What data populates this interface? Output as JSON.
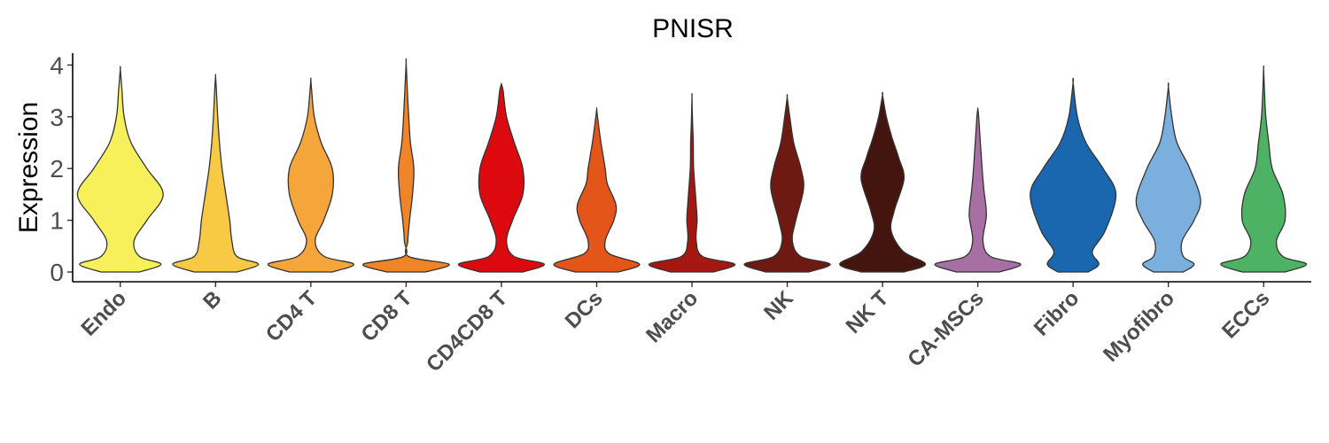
{
  "chart_data": {
    "type": "violin",
    "title": "PNISR",
    "xlabel": "",
    "ylabel": "Expression",
    "ylim": [
      -0.2,
      4.25
    ],
    "yticks": [
      "0",
      "1",
      "2",
      "3",
      "4"
    ],
    "grid": false,
    "legend": "none",
    "categories": [
      "Endo",
      "B",
      "CD4 T",
      "CD8 T",
      "CD4CD8 T",
      "DCs",
      "Macro",
      "NK",
      "NK T",
      "CA-MSCs",
      "Fibro",
      "Myofibro",
      "ECCs"
    ],
    "colors": [
      "#F7F05A",
      "#F7C945",
      "#F5A63A",
      "#F08428",
      "#DC0A0F",
      "#E45519",
      "#A51812",
      "#6E1912",
      "#44150E",
      "#A76FA3",
      "#1A67B0",
      "#7BAFDE",
      "#4DB264"
    ],
    "series": [
      {
        "category": "Endo",
        "max": 3.92,
        "density": [
          [
            0,
            0.45
          ],
          [
            0.15,
            0.95
          ],
          [
            0.3,
            0.45
          ],
          [
            0.6,
            0.32
          ],
          [
            1.0,
            0.62
          ],
          [
            1.5,
            1.0
          ],
          [
            2.0,
            0.62
          ],
          [
            2.5,
            0.25
          ],
          [
            3.0,
            0.09
          ],
          [
            3.5,
            0.04
          ],
          [
            3.92,
            0
          ]
        ]
      },
      {
        "category": "B",
        "max": 3.78,
        "density": [
          [
            0,
            0.5
          ],
          [
            0.15,
            1.0
          ],
          [
            0.3,
            0.5
          ],
          [
            0.6,
            0.38
          ],
          [
            1.0,
            0.33
          ],
          [
            1.5,
            0.24
          ],
          [
            2.0,
            0.15
          ],
          [
            2.5,
            0.09
          ],
          [
            3.0,
            0.05
          ],
          [
            3.5,
            0.02
          ],
          [
            3.78,
            0
          ]
        ]
      },
      {
        "category": "CD4 T",
        "max": 3.72,
        "density": [
          [
            0,
            0.5
          ],
          [
            0.15,
            1.0
          ],
          [
            0.3,
            0.32
          ],
          [
            0.6,
            0.1
          ],
          [
            1.0,
            0.3
          ],
          [
            1.5,
            0.5
          ],
          [
            2.0,
            0.5
          ],
          [
            2.5,
            0.24
          ],
          [
            3.0,
            0.08
          ],
          [
            3.5,
            0.02
          ],
          [
            3.72,
            0
          ]
        ]
      },
      {
        "category": "CD8 T",
        "max": 4.05,
        "density": [
          [
            0,
            0.45
          ],
          [
            0.15,
            1.0
          ],
          [
            0.3,
            0.06
          ],
          [
            0.6,
            0.04
          ],
          [
            1.0,
            0.08
          ],
          [
            1.5,
            0.15
          ],
          [
            2.0,
            0.18
          ],
          [
            2.5,
            0.1
          ],
          [
            3.0,
            0.06
          ],
          [
            3.5,
            0.03
          ],
          [
            4.05,
            0
          ]
        ]
      },
      {
        "category": "CD4CD8 T",
        "max": 3.63,
        "density": [
          [
            0,
            0.5
          ],
          [
            0.15,
            1.0
          ],
          [
            0.3,
            0.3
          ],
          [
            0.6,
            0.12
          ],
          [
            1.0,
            0.26
          ],
          [
            1.5,
            0.5
          ],
          [
            2.0,
            0.5
          ],
          [
            2.5,
            0.3
          ],
          [
            3.0,
            0.12
          ],
          [
            3.5,
            0.04
          ],
          [
            3.63,
            0
          ]
        ]
      },
      {
        "category": "DCs",
        "max": 3.15,
        "density": [
          [
            0,
            0.5
          ],
          [
            0.15,
            1.0
          ],
          [
            0.35,
            0.3
          ],
          [
            0.6,
            0.2
          ],
          [
            1.0,
            0.4
          ],
          [
            1.3,
            0.45
          ],
          [
            1.7,
            0.25
          ],
          [
            2.0,
            0.2
          ],
          [
            2.5,
            0.1
          ],
          [
            3.0,
            0.02
          ],
          [
            3.15,
            0
          ]
        ]
      },
      {
        "category": "Macro",
        "max": 3.4,
        "density": [
          [
            0,
            0.5
          ],
          [
            0.15,
            1.0
          ],
          [
            0.3,
            0.25
          ],
          [
            0.6,
            0.1
          ],
          [
            1.0,
            0.12
          ],
          [
            1.3,
            0.1
          ],
          [
            2.0,
            0.04
          ],
          [
            2.5,
            0.03
          ],
          [
            3.0,
            0.01
          ],
          [
            3.4,
            0
          ]
        ]
      },
      {
        "category": "NK",
        "max": 3.38,
        "density": [
          [
            0,
            0.5
          ],
          [
            0.15,
            1.0
          ],
          [
            0.3,
            0.32
          ],
          [
            0.6,
            0.12
          ],
          [
            1.0,
            0.2
          ],
          [
            1.6,
            0.38
          ],
          [
            2.0,
            0.32
          ],
          [
            2.5,
            0.15
          ],
          [
            3.0,
            0.06
          ],
          [
            3.38,
            0
          ]
        ]
      },
      {
        "category": "NK T",
        "max": 3.42,
        "density": [
          [
            0,
            0.5
          ],
          [
            0.15,
            1.0
          ],
          [
            0.4,
            0.48
          ],
          [
            0.8,
            0.2
          ],
          [
            1.2,
            0.28
          ],
          [
            1.8,
            0.5
          ],
          [
            2.2,
            0.38
          ],
          [
            2.6,
            0.22
          ],
          [
            3.0,
            0.09
          ],
          [
            3.42,
            0
          ]
        ]
      },
      {
        "category": "CA-MSCs",
        "max": 3.15,
        "density": [
          [
            0,
            0.5
          ],
          [
            0.15,
            1.0
          ],
          [
            0.3,
            0.3
          ],
          [
            0.6,
            0.12
          ],
          [
            1.1,
            0.2
          ],
          [
            1.6,
            0.14
          ],
          [
            2.0,
            0.1
          ],
          [
            2.5,
            0.06
          ],
          [
            3.0,
            0.02
          ],
          [
            3.15,
            0
          ]
        ]
      },
      {
        "category": "Fibro",
        "max": 3.66,
        "density": [
          [
            0,
            0.35
          ],
          [
            0.15,
            0.6
          ],
          [
            0.4,
            0.45
          ],
          [
            0.8,
            0.75
          ],
          [
            1.5,
            1.0
          ],
          [
            2.0,
            0.7
          ],
          [
            2.5,
            0.3
          ],
          [
            3.0,
            0.1
          ],
          [
            3.66,
            0
          ]
        ]
      },
      {
        "category": "Myofibro",
        "max": 3.58,
        "density": [
          [
            0,
            0.35
          ],
          [
            0.15,
            0.6
          ],
          [
            0.3,
            0.35
          ],
          [
            0.6,
            0.32
          ],
          [
            1.0,
            0.6
          ],
          [
            1.4,
            0.75
          ],
          [
            2.0,
            0.5
          ],
          [
            2.5,
            0.2
          ],
          [
            3.0,
            0.08
          ],
          [
            3.58,
            0
          ]
        ]
      },
      {
        "category": "ECCs",
        "max": 3.93,
        "density": [
          [
            0,
            0.5
          ],
          [
            0.15,
            1.0
          ],
          [
            0.3,
            0.45
          ],
          [
            0.6,
            0.3
          ],
          [
            1.0,
            0.5
          ],
          [
            1.5,
            0.45
          ],
          [
            2.0,
            0.2
          ],
          [
            2.5,
            0.12
          ],
          [
            3.0,
            0.05
          ],
          [
            3.5,
            0.02
          ],
          [
            3.93,
            0
          ]
        ]
      }
    ]
  }
}
